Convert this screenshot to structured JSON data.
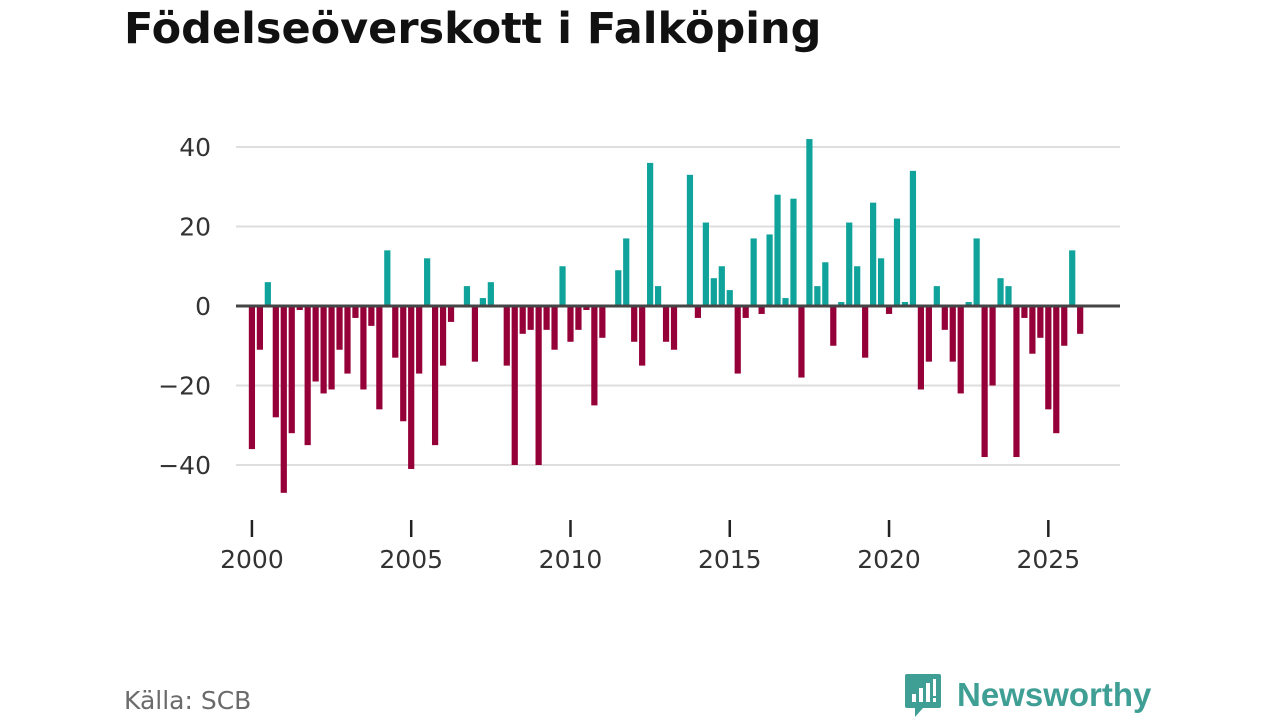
{
  "title": "Födelseöverskott i Falköping",
  "source": "Källa: SCB",
  "brand": {
    "name": "Newsworthy",
    "color": "#3f9f95",
    "icon": "bar-chart-speech-bubble-icon"
  },
  "colors": {
    "positive": "#0fa39b",
    "negative": "#960039",
    "gridline": "#dedede",
    "zero_line": "#454545",
    "text": "#333333"
  },
  "chart_data": {
    "type": "bar",
    "title": "Födelseöverskott i Falköping",
    "xlabel": "",
    "ylabel": "",
    "ylim": [
      -50,
      45
    ],
    "xlim": [
      1999.5,
      2027.25
    ],
    "y_ticks": [
      40,
      20,
      0,
      -20,
      -40
    ],
    "y_tick_labels": [
      "40",
      "20",
      "0",
      "−20",
      "−40"
    ],
    "x_ticks": [
      2000,
      2005,
      2010,
      2015,
      2020,
      2025
    ],
    "x_tick_labels": [
      "2000",
      "2005",
      "2010",
      "2015",
      "2020",
      "2025"
    ],
    "grid": true,
    "frequency": "quarterly",
    "start": "2000 Q1",
    "end": "2026 Q1",
    "values": [
      -36,
      -11,
      6,
      -28,
      -47,
      -32,
      -1,
      -35,
      -19,
      -22,
      -21,
      -11,
      -17,
      -3,
      -21,
      -5,
      -26,
      14,
      -13,
      -29,
      -41,
      -17,
      12,
      -35,
      -15,
      -4,
      0,
      5,
      -14,
      2,
      6,
      0,
      -15,
      -40,
      -7,
      -6,
      -40,
      -6,
      -11,
      10,
      -9,
      -6,
      -1,
      -25,
      -8,
      0,
      9,
      17,
      -9,
      -15,
      36,
      5,
      -9,
      -11,
      0,
      33,
      -3,
      21,
      7,
      10,
      4,
      -17,
      -3,
      17,
      -2,
      18,
      28,
      2,
      27,
      -18,
      42,
      5,
      11,
      -10,
      1,
      21,
      10,
      -13,
      26,
      12,
      -2,
      22,
      1,
      34,
      -21,
      -14,
      5,
      -6,
      -14,
      -22,
      1,
      17,
      -38,
      -20,
      7,
      5,
      -38,
      -3,
      -12,
      -8,
      -26,
      -32,
      -10,
      14,
      -7
    ]
  }
}
